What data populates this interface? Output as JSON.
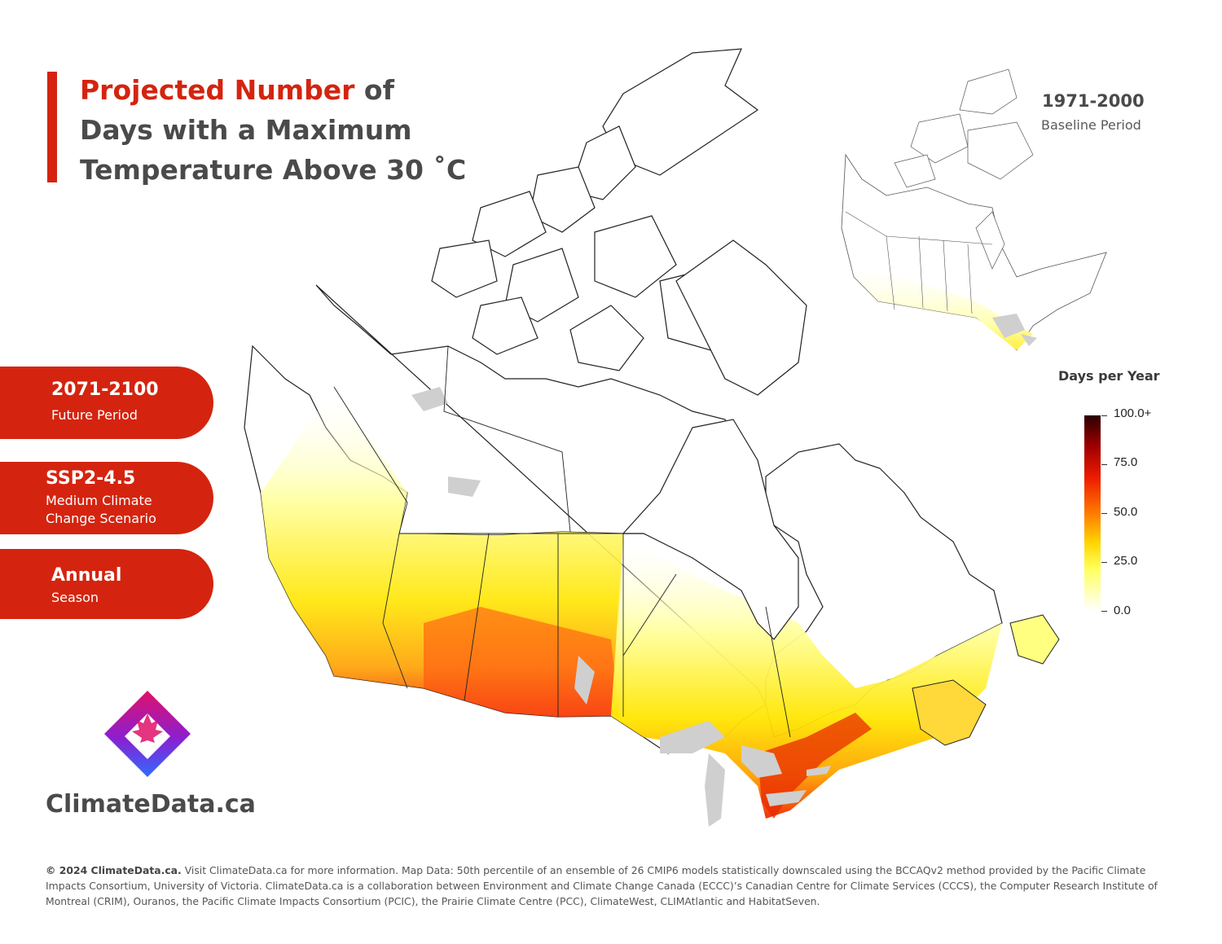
{
  "title": {
    "accent": "Projected Number",
    "rest": " of Days with a Maximum Temperature Above 30 ˚C"
  },
  "pills": [
    {
      "big": "2071-2100",
      "small": "Future Period"
    },
    {
      "big": "SSP2-4.5",
      "small": "Medium Climate Change Scenario"
    },
    {
      "big": "Annual",
      "small": "Season"
    }
  ],
  "brand": "ClimateData.ca",
  "baseline": {
    "years": "1971-2000",
    "label": "Baseline Period"
  },
  "legend": {
    "title": "Days per Year",
    "ticks": [
      "100.0+",
      "75.0",
      "50.0",
      "25.0",
      "0.0"
    ],
    "min": 0,
    "max": 100
  },
  "footer": {
    "bold": "© 2024 ClimateData.ca.",
    "text": " Visit ClimateData.ca for more information. Map Data: 50th percentile of an ensemble of 26 CMIP6 models statistically downscaled using the BCCAQv2 method provided by the Pacific Climate Impacts Consortium, University of Victoria. ClimateData.ca is a collaboration between Environment and Climate Change Canada (ECCC)’s Canadian Centre for Climate Services (CCCS), the Computer Research Institute of Montreal (CRIM), Ouranos, the Pacific Climate Impacts Consortium (PCIC), the Prairie Climate Centre (PCC), ClimateWest, CLIMAtlantic and HabitatSeven."
  },
  "colors": {
    "accent": "#d4240f",
    "text": "#4a4a4a",
    "water": "#cfcfcf"
  }
}
